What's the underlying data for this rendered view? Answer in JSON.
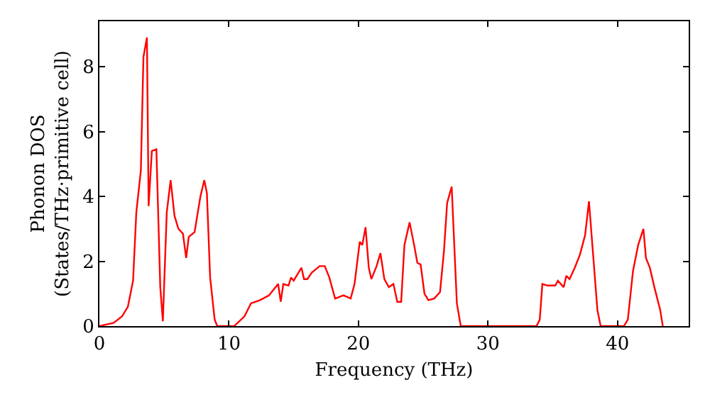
{
  "chart_data": {
    "type": "line",
    "xlabel": "Frequency (THz)",
    "ylabel": "Phonon DOS\n(States/THz·primitive cell)",
    "x": [
      0,
      1.1,
      1.75,
      2.2,
      2.6,
      2.85,
      3.2,
      3.4,
      3.67,
      3.8,
      4.05,
      4.4,
      4.7,
      4.9,
      5.2,
      5.5,
      5.8,
      6.1,
      6.45,
      6.7,
      6.9,
      7.35,
      7.8,
      8.1,
      8.3,
      8.55,
      8.9,
      9.1,
      10.4,
      11.2,
      11.7,
      12.4,
      13.1,
      13.8,
      14.0,
      14.2,
      14.6,
      14.8,
      15.0,
      15.6,
      15.8,
      16.05,
      16.4,
      17.0,
      17.4,
      17.75,
      18.2,
      18.85,
      19.4,
      19.7,
      20.1,
      20.3,
      20.55,
      20.8,
      21.0,
      21.4,
      21.7,
      22.0,
      22.35,
      22.7,
      23.0,
      23.3,
      23.55,
      23.95,
      24.3,
      24.55,
      24.8,
      25.1,
      25.4,
      25.85,
      26.3,
      26.6,
      26.85,
      27.2,
      27.4,
      27.6,
      27.9,
      33.75,
      34.0,
      34.2,
      34.6,
      35.2,
      35.4,
      35.85,
      36.05,
      36.3,
      36.7,
      37.1,
      37.5,
      37.8,
      38.1,
      38.45,
      38.7,
      40.5,
      40.8,
      41.2,
      41.6,
      42.0,
      42.2,
      42.5,
      42.85,
      43.3,
      43.5
    ],
    "series": [
      {
        "color": "#ff0000",
        "values": [
          0,
          0.1,
          0.3,
          0.6,
          1.4,
          3.5,
          4.8,
          8.3,
          8.9,
          3.7,
          5.4,
          5.45,
          1.2,
          0.15,
          3.5,
          4.5,
          3.4,
          3.0,
          2.85,
          2.1,
          2.75,
          2.9,
          4.0,
          4.5,
          4.1,
          1.5,
          0.2,
          0,
          0,
          0.3,
          0.7,
          0.8,
          0.95,
          1.3,
          0.75,
          1.3,
          1.25,
          1.5,
          1.4,
          1.8,
          1.45,
          1.45,
          1.65,
          1.85,
          1.85,
          1.5,
          0.85,
          0.95,
          0.85,
          1.3,
          2.6,
          2.5,
          3.05,
          1.8,
          1.45,
          1.85,
          2.25,
          1.45,
          1.2,
          1.3,
          0.75,
          0.75,
          2.5,
          3.2,
          2.5,
          1.95,
          1.9,
          1.0,
          0.8,
          0.85,
          1.05,
          2.3,
          3.8,
          4.3,
          2.5,
          0.7,
          0,
          0,
          0.2,
          1.3,
          1.25,
          1.25,
          1.4,
          1.2,
          1.55,
          1.45,
          1.8,
          2.2,
          2.8,
          3.85,
          2.3,
          0.5,
          0,
          0,
          0.2,
          1.7,
          2.5,
          3.0,
          2.1,
          1.8,
          1.2,
          0.5,
          0
        ]
      }
    ],
    "xlim": [
      0,
      45.5
    ],
    "xticks": [
      0,
      10,
      20,
      30,
      40
    ],
    "ylim": [
      0,
      9.4
    ],
    "yticks": [
      0,
      2,
      4,
      6,
      8
    ],
    "grid": false,
    "marker": "none",
    "line_style": "solid"
  }
}
